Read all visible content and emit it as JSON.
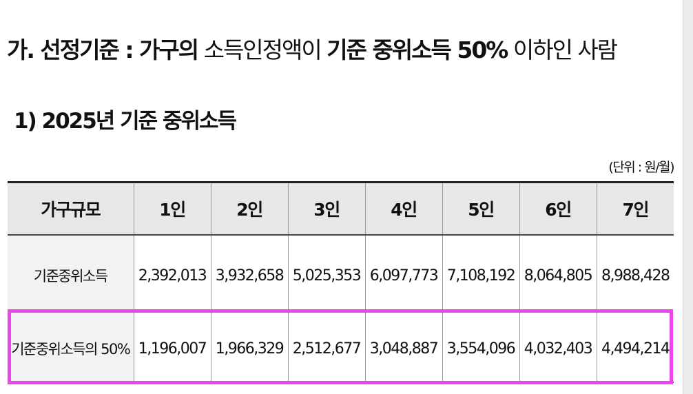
{
  "heading": {
    "prefix": "가. 선정기준 : 가구의",
    "middle": " 소득인정액이 ",
    "rest": "기준 중위소득 50%",
    "suffix": " 이하인 사람"
  },
  "subheading": "1) 2025년 기준 중위소득",
  "unit": "(단위 : 원/월)",
  "table": {
    "header_label": "가구규모",
    "columns": [
      "1인",
      "2인",
      "3인",
      "4인",
      "5인",
      "6인",
      "7인"
    ],
    "rows": [
      {
        "label": "기준중위소득",
        "values": [
          "2,392,013",
          "3,932,658",
          "5,025,353",
          "6,097,773",
          "7,108,192",
          "8,064,805",
          "8,988,428"
        ]
      },
      {
        "label": "기준중위소득의 50%",
        "values": [
          "1,196,007",
          "1,966,329",
          "2,512,677",
          "3,048,887",
          "3,554,096",
          "4,032,403",
          "4,494,214"
        ]
      }
    ]
  },
  "colors": {
    "highlight_border": "#ee44ee",
    "header_bg": "#e7e7e7"
  }
}
